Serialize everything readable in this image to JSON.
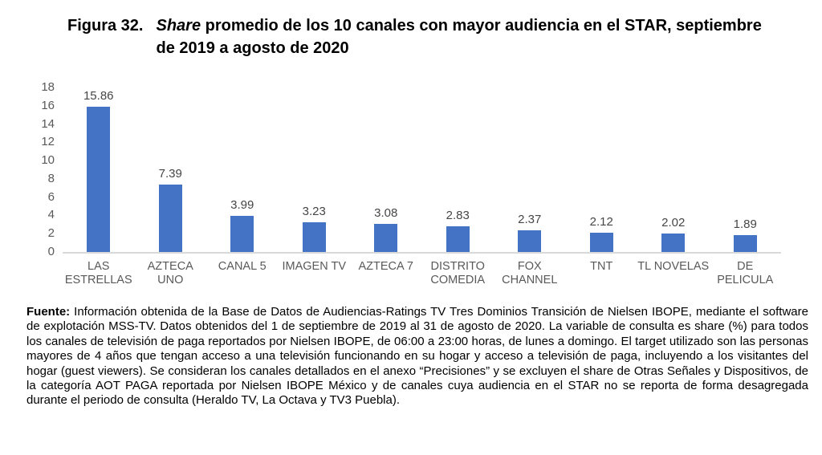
{
  "title": {
    "label": "Figura 32.",
    "italic_word": "Share",
    "rest": " promedio de los 10 canales con mayor audiencia en el STAR, septiembre\nde 2019 a agosto de 2020"
  },
  "chart_data": {
    "type": "bar",
    "title": "Figura 32. Share promedio de los 10 canales con mayor audiencia en el STAR, septiembre de 2019 a agosto de 2020",
    "categories": [
      "LAS ESTRELLAS",
      "AZTECA UNO",
      "CANAL 5",
      "IMAGEN TV",
      "AZTECA 7",
      "DISTRITO COMEDIA",
      "FOX CHANNEL",
      "TNT",
      "TL NOVELAS",
      "DE PELICULA"
    ],
    "category_lines": [
      "LAS\nESTRELLAS",
      "AZTECA\nUNO",
      "CANAL 5",
      "IMAGEN TV",
      "AZTECA 7",
      "DISTRITO\nCOMEDIA",
      "FOX\nCHANNEL",
      "TNT",
      "TL NOVELAS",
      "DE\nPELICULA"
    ],
    "values": [
      15.86,
      7.39,
      3.99,
      3.23,
      3.08,
      2.83,
      2.37,
      2.12,
      2.02,
      1.89
    ],
    "value_labels": [
      "15.86",
      "7.39",
      "3.99",
      "3.23",
      "3.08",
      "2.83",
      "2.37",
      "2.12",
      "2.02",
      "1.89"
    ],
    "xlabel": "",
    "ylabel": "",
    "ylim": [
      0,
      18
    ],
    "ytick_step": 2,
    "yticks": [
      0,
      2,
      4,
      6,
      8,
      10,
      12,
      14,
      16,
      18
    ],
    "grid": false,
    "legend_position": "none",
    "bar_color": "#4472C4",
    "axis_line_color": "#D9D9D9",
    "label_color": "#595959",
    "value_label_color": "#464646"
  },
  "source": {
    "label": "Fuente:",
    "text": " Información obtenida de la Base de Datos de Audiencias-Ratings TV Tres Dominios Transición de Nielsen IBOPE, mediante el software de explotación MSS-TV. Datos obtenidos del 1 de septiembre de 2019 al 31 de agosto de 2020. La variable de consulta es share (%) para todos los canales de televisión de paga reportados por Nielsen IBOPE, de 06:00 a 23:00 horas, de lunes a domingo. El target utilizado son las personas mayores de 4 años que tengan acceso a una televisión funcionando en su hogar y acceso a televisión de paga, incluyendo a los visitantes del hogar (guest viewers). Se consideran los canales detallados en el anexo “Precisiones” y se excluyen el share de Otras Señales y Dispositivos, de la categoría AOT PAGA reportada por Nielsen IBOPE México y de canales cuya audiencia en el STAR no se reporta de forma desagregada durante el periodo de consulta (Heraldo TV, La Octava y TV3 Puebla)."
  }
}
